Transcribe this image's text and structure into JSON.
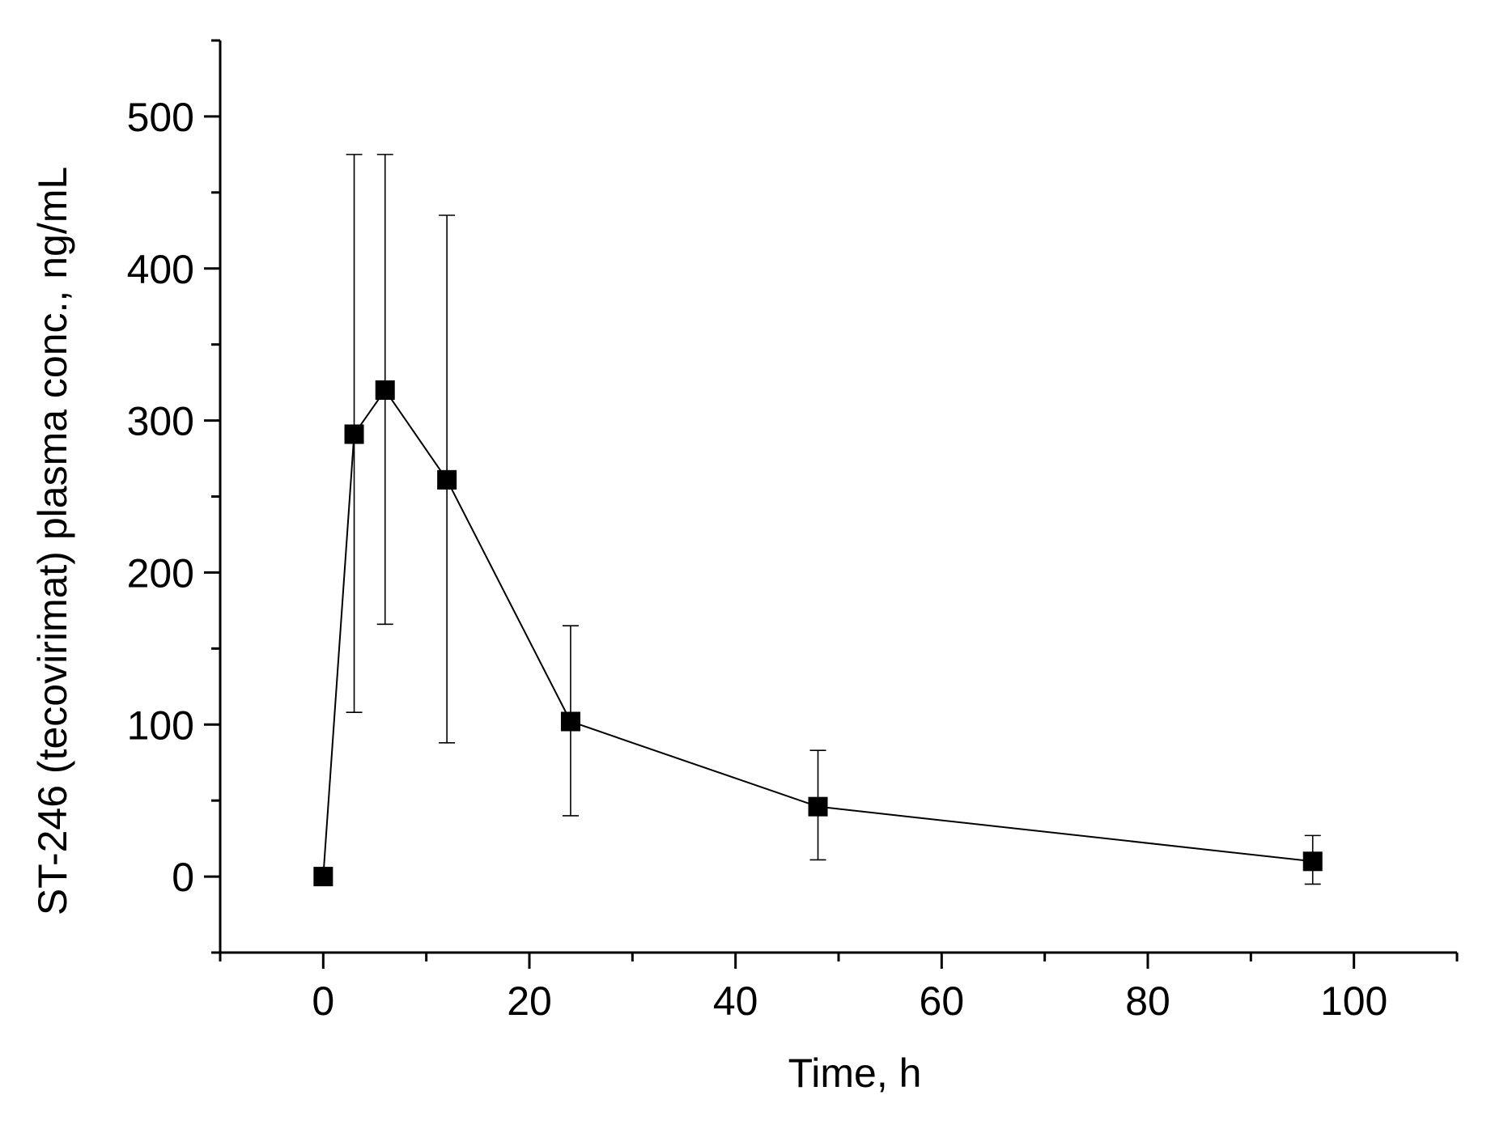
{
  "chart_data": {
    "type": "scatter",
    "xlabel": "Time, h",
    "ylabel": "ST-246 (tecovirimat) plasma conc., ng/mL",
    "xlim": [
      -10,
      110
    ],
    "ylim": [
      -50,
      550
    ],
    "x_ticks": [
      0,
      20,
      40,
      60,
      80,
      100
    ],
    "x_minor_ticks": [
      -10,
      10,
      30,
      50,
      70,
      90,
      110
    ],
    "y_ticks": [
      0,
      100,
      200,
      300,
      400,
      500
    ],
    "y_minor_ticks": [
      -50,
      50,
      150,
      250,
      350,
      450,
      550
    ],
    "grid": false,
    "series": [
      {
        "marker": "square",
        "connected": true,
        "color": "#000000",
        "x": [
          0,
          3,
          6,
          12,
          24,
          48,
          96
        ],
        "y": [
          0,
          291,
          320,
          261,
          102,
          46,
          10
        ],
        "error_low": [
          null,
          108,
          166,
          88,
          40,
          11,
          -5
        ],
        "error_high": [
          null,
          475,
          475,
          435,
          165,
          83,
          27
        ]
      }
    ]
  }
}
